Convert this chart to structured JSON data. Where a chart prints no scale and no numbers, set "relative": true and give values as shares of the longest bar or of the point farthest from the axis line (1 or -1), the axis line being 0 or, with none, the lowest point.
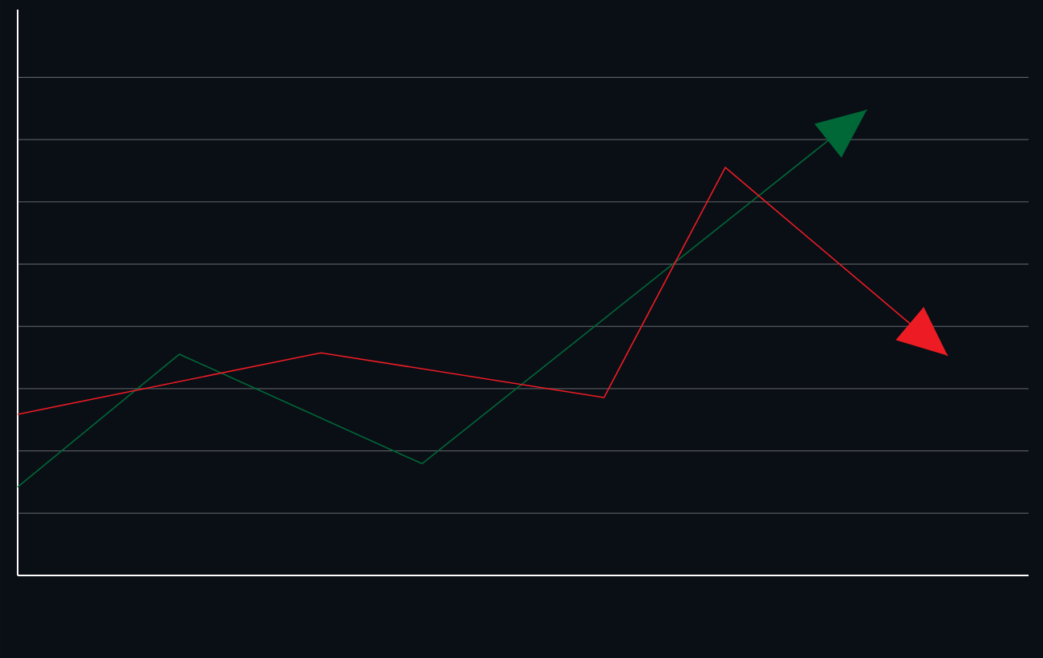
{
  "chart_data": {
    "type": "line",
    "relative": true,
    "grid": "y",
    "marker": "none",
    "line_style": "solid",
    "categories": [
      null,
      null,
      null,
      null,
      null,
      null,
      null,
      null,
      null,
      null,
      null,
      null,
      null,
      null,
      null,
      null,
      null,
      null,
      null,
      null,
      null,
      null,
      null,
      null,
      null,
      null,
      null,
      null,
      null,
      null,
      null,
      null,
      null,
      null,
      null,
      null,
      null,
      null,
      null,
      null,
      null,
      null,
      null,
      null,
      null,
      null,
      null,
      null,
      null,
      null,
      null
    ],
    "series": [
      {
        "color": "#006837",
        "values": [
          0.19,
          null,
          null,
          null,
          null,
          null,
          null,
          null,
          0.475,
          null,
          null,
          null,
          null,
          null,
          null,
          null,
          null,
          null,
          null,
          null,
          0.24,
          null,
          null,
          null,
          null,
          null,
          null,
          null,
          null,
          null,
          null,
          null,
          null,
          null,
          null,
          null,
          null,
          null,
          null,
          null,
          null,
          null,
          1,
          null,
          null,
          null,
          null,
          null,
          null,
          null,
          null
        ]
      },
      {
        "color": "#ed1c24",
        "values": [
          0.346,
          null,
          null,
          null,
          null,
          null,
          null,
          null,
          null,
          null,
          null,
          null,
          null,
          null,
          null,
          0.478,
          null,
          null,
          null,
          null,
          null,
          null,
          null,
          null,
          null,
          null,
          null,
          null,
          null,
          0.382,
          null,
          null,
          null,
          null,
          null,
          0.876,
          null,
          null,
          null,
          null,
          null,
          null,
          null,
          null,
          null,
          null,
          0.472,
          null,
          null,
          null,
          null
        ]
      }
    ]
  }
}
